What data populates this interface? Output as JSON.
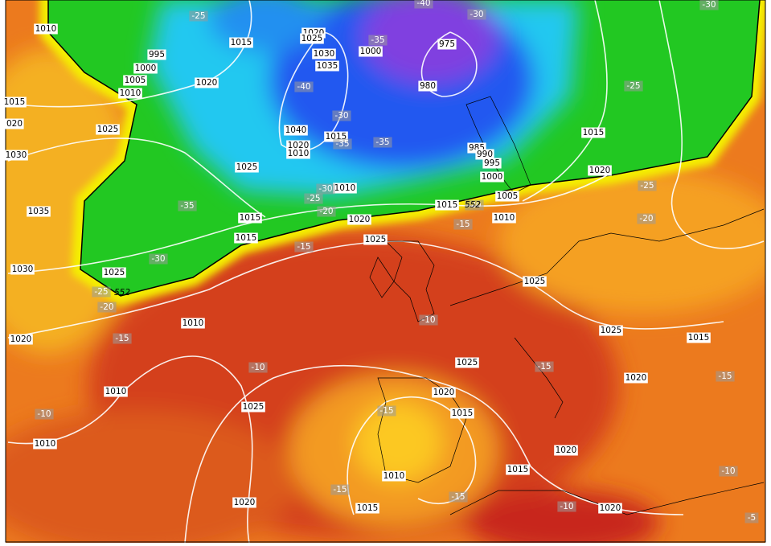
{
  "pressure_labels": [
    "1010",
    "995",
    "1000",
    "1005",
    "1010",
    "1015",
    "020",
    "1025",
    "1030",
    "1035",
    "1030",
    "1025",
    "1020",
    "1010",
    "1010",
    "1010",
    "1020",
    "1015",
    "1020",
    "1025",
    "1030",
    "1035",
    "1040",
    "1020",
    "1010",
    "1015",
    "1025",
    "1010",
    "1015",
    "1015",
    "1020",
    "1025",
    "1000",
    "975",
    "980",
    "985",
    "990",
    "995",
    "1000",
    "1005",
    "1015",
    "1010",
    "1015",
    "1020",
    "1025",
    "1025",
    "1015",
    "1020",
    "1025",
    "1020",
    "1015",
    "1025",
    "1010",
    "1015",
    "1020",
    "1015",
    "1020",
    "1020"
  ],
  "temperature_labels": [
    "-25",
    "-35",
    "-40",
    "-30",
    "-30",
    "-25",
    "-40",
    "-30",
    "-35",
    "-35",
    "-30",
    "-25",
    "-35",
    "-20",
    "-15",
    "-20",
    "-20",
    "-25",
    "-30",
    "-15",
    "-25",
    "-20",
    "-15",
    "-10",
    "-10",
    "-15",
    "-15",
    "-10",
    "-15",
    "-15",
    "-15",
    "-10",
    "-10",
    "-5"
  ],
  "height_labels": [
    "552",
    "552"
  ]
}
